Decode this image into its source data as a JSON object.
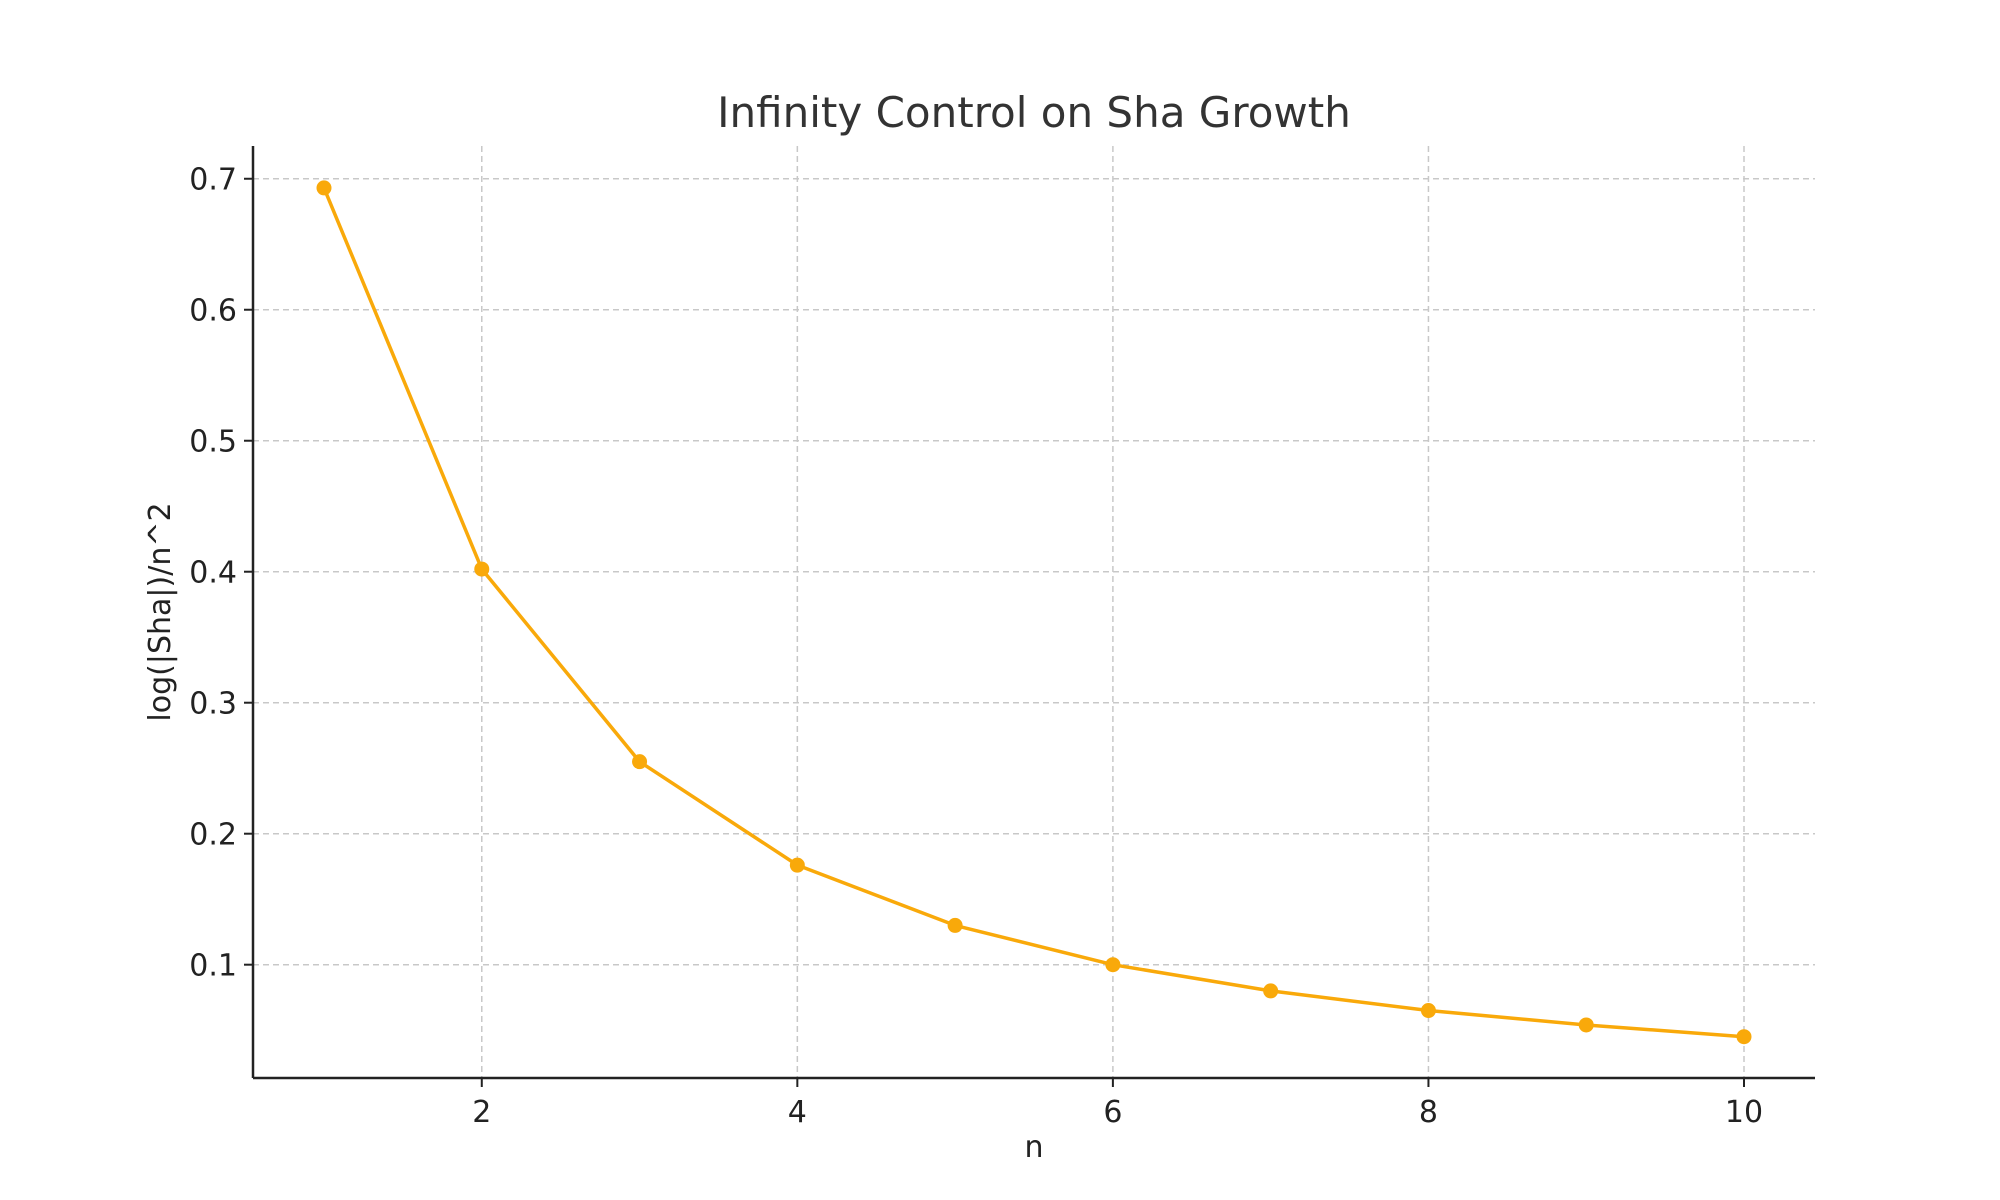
{
  "chart_data": {
    "type": "line",
    "title": "Infinity Control on Sha Growth",
    "xlabel": "n",
    "ylabel": "log(|Sha|)/n^2",
    "x": [
      1,
      2,
      3,
      4,
      5,
      6,
      7,
      8,
      9,
      10
    ],
    "series": [
      {
        "values": [
          0.693,
          0.402,
          0.255,
          0.176,
          0.13,
          0.1,
          0.08,
          0.065,
          0.054,
          0.045
        ],
        "color": "#F9A90A",
        "marker": "circle"
      }
    ],
    "xlim": [
      0.55,
      10.45
    ],
    "ylim": [
      0.0135,
      0.725
    ],
    "xticks": [
      2,
      4,
      6,
      8,
      10
    ],
    "xtick_labels": [
      "2",
      "4",
      "6",
      "8",
      "10"
    ],
    "yticks": [
      0.1,
      0.2,
      0.3,
      0.4,
      0.5,
      0.6,
      0.7
    ],
    "ytick_labels": [
      "0.1",
      "0.2",
      "0.3",
      "0.4",
      "0.5",
      "0.6",
      "0.7"
    ],
    "grid": true,
    "legend": "none"
  }
}
